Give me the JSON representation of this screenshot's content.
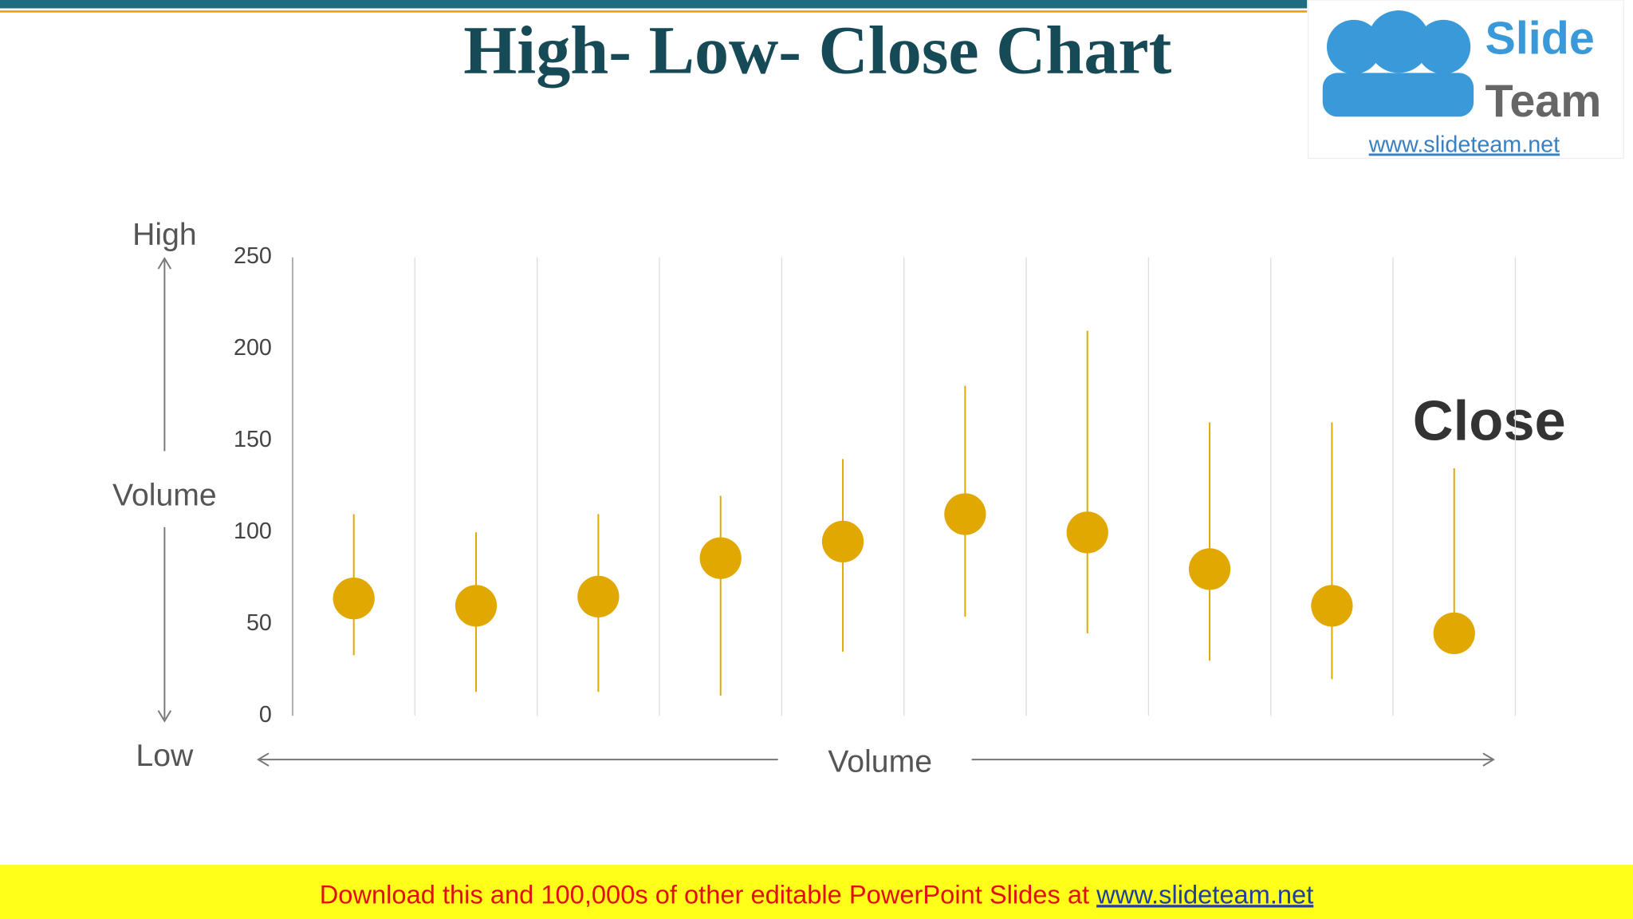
{
  "header": {
    "title": "High- Low- Close Chart"
  },
  "logo": {
    "line1": "Slide",
    "line2": "Team",
    "url": "www.slideteam.net"
  },
  "chart_data": {
    "type": "hlc",
    "categories": [
      null,
      null,
      null,
      null,
      null,
      null,
      null,
      null,
      null,
      null
    ],
    "high": [
      110,
      100,
      110,
      120,
      140,
      180,
      210,
      160,
      160,
      135
    ],
    "low": [
      33,
      13,
      13,
      11,
      35,
      54,
      45,
      30,
      20,
      45
    ],
    "close": [
      64,
      60,
      65,
      86,
      95,
      110,
      100,
      80,
      60,
      45
    ],
    "color": "#e0a800",
    "ylim": [
      0,
      250
    ],
    "yticks": [
      0,
      50,
      100,
      150,
      200,
      250
    ],
    "grid": "x",
    "annotation": "Close",
    "y_axis_labels": {
      "top": "High",
      "middle": "Volume",
      "bottom": "Low"
    },
    "x_axis_label": "Volume"
  },
  "footer": {
    "text": "Download this and 100,000s of other editable PowerPoint Slides at ",
    "link": "www.slideteam.net"
  }
}
